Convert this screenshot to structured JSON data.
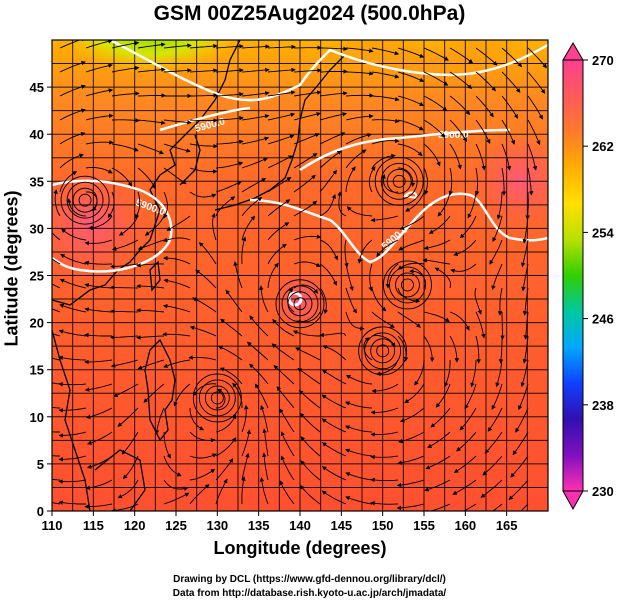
{
  "title": "GSM 00Z25Aug2024 (500.0hPa)",
  "axes": {
    "xlabel": "Longitude (degrees)",
    "ylabel": "Latitude  (degrees)",
    "xticks": [
      "110",
      "115",
      "120",
      "125",
      "130",
      "135",
      "140",
      "145",
      "150",
      "155",
      "160",
      "165"
    ],
    "yticks": [
      "0",
      "5",
      "10",
      "15",
      "20",
      "25",
      "30",
      "35",
      "40",
      "45"
    ]
  },
  "colorbar": {
    "labels": [
      "270",
      "262",
      "254",
      "246",
      "238",
      "230"
    ],
    "stops": [
      "#ff3f8f",
      "#ff5a5a",
      "#ff7a2a",
      "#ffae00",
      "#ffe000",
      "#b8e000",
      "#30d000",
      "#00c8a0",
      "#00a8ff",
      "#1040ff",
      "#3010b0",
      "#8010c0",
      "#ff30b0"
    ]
  },
  "map": {
    "lon_range": [
      110,
      170
    ],
    "lat_range": [
      0,
      50
    ],
    "contours": [
      {
        "label": "5900.0"
      },
      {
        "label": "5900.0"
      },
      {
        "label": "5900.0"
      },
      {
        "label": "5900.0"
      }
    ],
    "typhoon_center": {
      "lon": 139,
      "lat": 24.5
    }
  },
  "credits": {
    "line1": "Drawing by DCL (https://www.gfd-dennou.org/library/dcl/)",
    "line2": "Data from http://database.rish.kyoto-u.ac.jp/arch/jmadata/"
  }
}
